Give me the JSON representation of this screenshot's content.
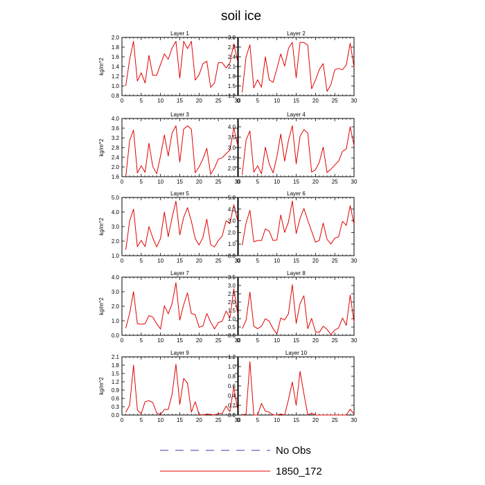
{
  "figure": {
    "title": "soil ice",
    "legend": [
      {
        "label": "No Obs",
        "color": "#3a3aa8",
        "dash": true
      },
      {
        "label": "1850_172",
        "color": "#e00000",
        "dash": false
      }
    ]
  },
  "chart_data": [
    {
      "type": "line",
      "title": "Layer 1",
      "ylabel": "kg/m^2",
      "xlim": [
        0,
        30
      ],
      "ylim": [
        0.8,
        2.0
      ],
      "xticks": [
        "0",
        "5",
        "10",
        "15",
        "20",
        "25",
        "30"
      ],
      "yticks": [
        "0.8",
        "1.0",
        "1.2",
        "1.4",
        "1.6",
        "1.8",
        "2.0"
      ],
      "x": [
        1,
        2,
        3,
        4,
        5,
        6,
        7,
        8,
        9,
        10,
        11,
        12,
        13,
        14,
        15,
        16,
        17,
        18,
        19,
        20,
        21,
        22,
        23,
        24,
        25,
        26,
        27,
        28,
        29,
        30
      ],
      "series": [
        {
          "name": "1850_172",
          "color": "#e00000",
          "values": [
            1.0,
            1.55,
            1.92,
            1.1,
            1.27,
            1.06,
            1.63,
            1.22,
            1.22,
            1.44,
            1.66,
            1.55,
            1.78,
            1.92,
            1.16,
            1.92,
            1.77,
            1.92,
            1.12,
            1.23,
            1.46,
            1.51,
            0.97,
            1.06,
            1.48,
            1.48,
            1.37,
            1.48,
            1.87,
            1.5
          ]
        }
      ]
    },
    {
      "type": "line",
      "title": "Layer 2",
      "ylabel": "",
      "xlim": [
        0,
        30
      ],
      "ylim": [
        1.2,
        3.0
      ],
      "xticks": [
        "0",
        "5",
        "10",
        "15",
        "20",
        "25",
        "30"
      ],
      "yticks": [
        "1.2",
        "1.5",
        "1.8",
        "2.1",
        "2.4",
        "2.7",
        "3.0"
      ],
      "x": [
        1,
        2,
        3,
        4,
        5,
        6,
        7,
        8,
        9,
        10,
        11,
        12,
        13,
        14,
        15,
        16,
        17,
        18,
        19,
        20,
        21,
        22,
        23,
        24,
        25,
        26,
        27,
        28,
        29,
        30
      ],
      "series": [
        {
          "name": "1850_172",
          "color": "#e00000",
          "values": [
            1.3,
            2.4,
            2.77,
            1.44,
            1.69,
            1.46,
            2.4,
            1.69,
            1.61,
            2.03,
            2.49,
            2.11,
            2.66,
            2.85,
            1.75,
            2.85,
            2.84,
            2.76,
            1.41,
            1.68,
            2.01,
            2.19,
            1.33,
            1.54,
            2.0,
            2.04,
            2.0,
            2.15,
            2.82,
            2.08
          ]
        }
      ]
    },
    {
      "type": "line",
      "title": "Layer 3",
      "ylabel": "kg/m^2",
      "xlim": [
        0,
        30
      ],
      "ylim": [
        1.6,
        4.0
      ],
      "xticks": [
        "0",
        "5",
        "10",
        "15",
        "20",
        "25",
        "30"
      ],
      "yticks": [
        "1.6",
        "2.0",
        "2.4",
        "2.8",
        "3.2",
        "3.6",
        "4.0"
      ],
      "x": [
        1,
        2,
        3,
        4,
        5,
        6,
        7,
        8,
        9,
        10,
        11,
        12,
        13,
        14,
        15,
        16,
        17,
        18,
        19,
        20,
        21,
        22,
        23,
        24,
        25,
        26,
        27,
        28,
        29,
        30
      ],
      "series": [
        {
          "name": "1850_172",
          "color": "#e00000",
          "values": [
            1.6,
            3.1,
            3.52,
            1.75,
            2.05,
            1.78,
            2.98,
            2.02,
            1.72,
            2.45,
            3.32,
            2.45,
            3.4,
            3.7,
            2.2,
            3.56,
            3.7,
            3.56,
            1.76,
            2.0,
            2.33,
            2.77,
            1.7,
            1.96,
            2.33,
            2.38,
            2.55,
            2.7,
            3.62,
            2.9
          ]
        }
      ]
    },
    {
      "type": "line",
      "title": "Layer 4",
      "ylabel": "",
      "xlim": [
        0,
        30
      ],
      "ylim": [
        1.6,
        4.4
      ],
      "xticks": [
        "0",
        "5",
        "10",
        "15",
        "20",
        "25",
        "30"
      ],
      "yticks": [
        "2.0",
        "2.5",
        "3.0",
        "3.5",
        "4.0"
      ],
      "x": [
        1,
        2,
        3,
        4,
        5,
        6,
        7,
        8,
        9,
        10,
        11,
        12,
        13,
        14,
        15,
        16,
        17,
        18,
        19,
        20,
        21,
        22,
        23,
        24,
        25,
        26,
        27,
        28,
        29,
        30
      ],
      "series": [
        {
          "name": "1850_172",
          "color": "#e00000",
          "values": [
            1.7,
            3.36,
            3.8,
            1.82,
            2.12,
            1.74,
            3.02,
            2.22,
            1.78,
            2.56,
            3.65,
            2.35,
            3.35,
            4.05,
            2.22,
            3.55,
            3.86,
            3.7,
            1.82,
            1.93,
            2.3,
            3.02,
            1.8,
            1.96,
            2.16,
            2.35,
            2.82,
            2.94,
            4.0,
            3.1
          ]
        }
      ]
    },
    {
      "type": "line",
      "title": "Layer 5",
      "ylabel": "kg/m^2",
      "xlim": [
        0,
        30
      ],
      "ylim": [
        1.0,
        5.0
      ],
      "xticks": [
        "0",
        "5",
        "10",
        "15",
        "20",
        "25",
        "30"
      ],
      "yticks": [
        "1.0",
        "2.0",
        "3.0",
        "4.0",
        "5.0"
      ],
      "x": [
        1,
        2,
        3,
        4,
        5,
        6,
        7,
        8,
        9,
        10,
        11,
        12,
        13,
        14,
        15,
        16,
        17,
        18,
        19,
        20,
        21,
        22,
        23,
        24,
        25,
        26,
        27,
        28,
        29,
        30
      ],
      "series": [
        {
          "name": "1850_172",
          "color": "#e00000",
          "values": [
            1.4,
            3.4,
            4.2,
            1.62,
            2.05,
            1.62,
            3.0,
            2.22,
            1.6,
            2.18,
            4.0,
            2.3,
            3.63,
            4.75,
            2.42,
            3.63,
            4.3,
            3.37,
            2.17,
            1.73,
            2.25,
            3.51,
            1.75,
            1.6,
            2.05,
            2.35,
            3.4,
            3.2,
            4.5,
            3.4
          ]
        }
      ]
    },
    {
      "type": "line",
      "title": "Layer 6",
      "ylabel": "",
      "xlim": [
        0,
        30
      ],
      "ylim": [
        0.0,
        5.0
      ],
      "xticks": [
        "0",
        "5",
        "10",
        "15",
        "20",
        "25",
        "30"
      ],
      "yticks": [
        "0.0",
        "1.0",
        "2.0",
        "3.0",
        "4.0",
        "5.0"
      ],
      "x": [
        1,
        2,
        3,
        4,
        5,
        6,
        7,
        8,
        9,
        10,
        11,
        12,
        13,
        14,
        15,
        16,
        17,
        18,
        19,
        20,
        21,
        22,
        23,
        24,
        25,
        26,
        27,
        28,
        29,
        30
      ],
      "series": [
        {
          "name": "1850_172",
          "color": "#e00000",
          "values": [
            0.9,
            2.8,
            3.9,
            1.2,
            1.3,
            1.3,
            2.3,
            2.12,
            1.3,
            1.35,
            3.5,
            2.0,
            2.9,
            4.7,
            1.9,
            3.2,
            4.05,
            3.02,
            2.1,
            1.15,
            1.33,
            2.8,
            1.4,
            1.0,
            1.5,
            1.62,
            2.95,
            2.6,
            4.3,
            2.7
          ]
        }
      ]
    },
    {
      "type": "line",
      "title": "Layer 7",
      "ylabel": "kg/m^2",
      "xlim": [
        0,
        30
      ],
      "ylim": [
        0.0,
        4.0
      ],
      "xticks": [
        "0",
        "5",
        "10",
        "15",
        "20",
        "25",
        "30"
      ],
      "yticks": [
        "0.0",
        "1.0",
        "2.0",
        "3.0",
        "4.0"
      ],
      "x": [
        1,
        2,
        3,
        4,
        5,
        6,
        7,
        8,
        9,
        10,
        11,
        12,
        13,
        14,
        15,
        16,
        17,
        18,
        19,
        20,
        21,
        22,
        23,
        24,
        25,
        26,
        27,
        28,
        29,
        30
      ],
      "series": [
        {
          "name": "1850_172",
          "color": "#e00000",
          "values": [
            0.5,
            1.52,
            3.0,
            0.8,
            0.76,
            0.8,
            1.35,
            1.26,
            0.8,
            0.43,
            2.03,
            1.48,
            2.18,
            3.62,
            1.05,
            2.1,
            2.92,
            1.5,
            1.43,
            0.55,
            0.65,
            1.5,
            0.92,
            0.44,
            0.88,
            0.97,
            1.67,
            1.22,
            3.2,
            1.47
          ]
        }
      ]
    },
    {
      "type": "line",
      "title": "Layer 8",
      "ylabel": "",
      "xlim": [
        0,
        30
      ],
      "ylim": [
        0.0,
        3.5
      ],
      "xticks": [
        "0",
        "5",
        "10",
        "15",
        "20",
        "25",
        "30"
      ],
      "yticks": [
        "0.0",
        "0.5",
        "1.0",
        "1.5",
        "2.0",
        "2.5",
        "3.0",
        "3.5"
      ],
      "x": [
        1,
        2,
        3,
        4,
        5,
        6,
        7,
        8,
        9,
        10,
        11,
        12,
        13,
        14,
        15,
        16,
        17,
        18,
        19,
        20,
        21,
        22,
        23,
        24,
        25,
        26,
        27,
        28,
        29,
        30
      ],
      "series": [
        {
          "name": "1850_172",
          "color": "#e00000",
          "values": [
            0.4,
            0.9,
            2.6,
            0.55,
            0.4,
            0.55,
            1.0,
            0.85,
            0.4,
            0.08,
            1.04,
            0.92,
            1.3,
            3.05,
            0.72,
            1.92,
            2.38,
            0.4,
            1.02,
            0.22,
            0.18,
            0.55,
            0.36,
            0.05,
            0.32,
            0.44,
            1.04,
            0.6,
            2.42,
            0.8
          ]
        }
      ]
    },
    {
      "type": "line",
      "title": "Layer 9",
      "ylabel": "kg/m^2",
      "xlim": [
        0,
        30
      ],
      "ylim": [
        0.0,
        2.1
      ],
      "xticks": [
        "0",
        "5",
        "10",
        "15",
        "20",
        "25",
        "30"
      ],
      "yticks": [
        "0.0",
        "0.3",
        "0.6",
        "0.9",
        "1.2",
        "1.5",
        "1.8",
        "2.1"
      ],
      "x": [
        1,
        2,
        3,
        4,
        5,
        6,
        7,
        8,
        9,
        10,
        11,
        12,
        13,
        14,
        15,
        16,
        17,
        18,
        19,
        20,
        21,
        22,
        23,
        24,
        25,
        26,
        27,
        28,
        29,
        30
      ],
      "series": [
        {
          "name": "1850_172",
          "color": "#e00000",
          "values": [
            0.1,
            0.35,
            1.8,
            0.18,
            0.05,
            0.48,
            0.52,
            0.45,
            0.08,
            0.02,
            0.2,
            0.2,
            0.75,
            1.83,
            0.38,
            1.32,
            1.15,
            0.1,
            0.48,
            0.02,
            0.0,
            0.03,
            0.02,
            0.0,
            0.05,
            0.06,
            0.32,
            0.12,
            1.02,
            0.2
          ]
        }
      ]
    },
    {
      "type": "line",
      "title": "Layer 10",
      "ylabel": "",
      "xlim": [
        0,
        30
      ],
      "ylim": [
        0.0,
        1.2
      ],
      "xticks": [
        "0",
        "5",
        "10",
        "15",
        "20",
        "25",
        "30"
      ],
      "yticks": [
        "0.0",
        "0.2",
        "0.4",
        "0.6",
        "0.8",
        "1.0",
        "1.2"
      ],
      "x": [
        1,
        2,
        3,
        4,
        5,
        6,
        7,
        8,
        9,
        10,
        11,
        12,
        13,
        14,
        15,
        16,
        17,
        18,
        19,
        20,
        21,
        22,
        23,
        24,
        25,
        26,
        27,
        28,
        29,
        30
      ],
      "series": [
        {
          "name": "1850_172",
          "color": "#e00000",
          "values": [
            0.0,
            0.02,
            1.1,
            0.0,
            0.0,
            0.24,
            0.08,
            0.06,
            0.0,
            0.0,
            0.02,
            0.0,
            0.32,
            0.68,
            0.2,
            0.9,
            0.44,
            0.0,
            0.04,
            0.0,
            0.0,
            0.0,
            0.0,
            0.0,
            0.0,
            0.0,
            0.0,
            0.0,
            0.12,
            0.02
          ]
        }
      ]
    }
  ]
}
